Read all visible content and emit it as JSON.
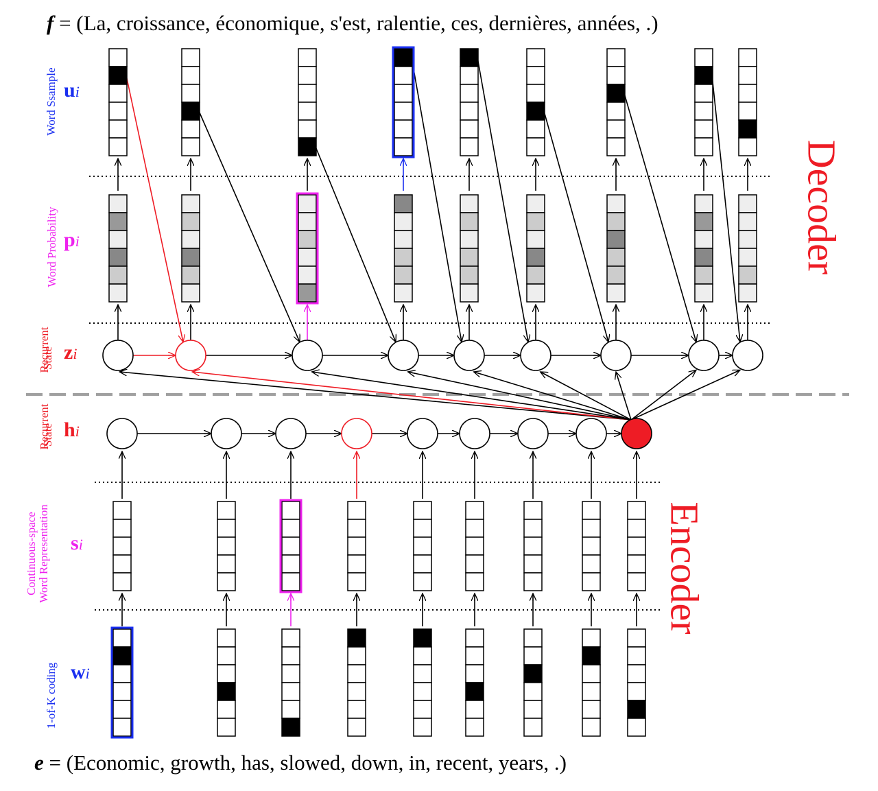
{
  "captions": {
    "f_label": "f",
    "f_text": " = (La, croissance, économique, s'est, ralentie, ces, dernières, années, .)",
    "e_label": "e",
    "e_text": " = (Economic, growth, has, slowed, down, in, recent, years, .)"
  },
  "side_labels": {
    "word_sample": "Word Ssample",
    "word_probability": "Word Probability",
    "dec_recurrent_1": "Recurrent",
    "dec_recurrent_2": "State",
    "enc_recurrent_1": "Recurrent",
    "enc_recurrent_2": "State",
    "continuous_1": "Continuous-space",
    "continuous_2": "Word Representation",
    "one_of_k": "1-of-K coding"
  },
  "symbols": {
    "u": "u",
    "p": "p",
    "z": "z",
    "h": "h",
    "s": "s",
    "w": "w",
    "sub": "i"
  },
  "sections": {
    "decoder": "Decoder",
    "encoder": "Encoder"
  },
  "colors": {
    "black": "#000000",
    "red": "#ee1c25",
    "blue": "#1a2ff0",
    "magenta": "#ee22ee",
    "dashed_divider": "#a0a0a0",
    "prob_light": "#eeeeee",
    "prob_mid": "#cccccc",
    "prob_dark": "#999999"
  },
  "decoder": {
    "word_sample_filled": [
      1,
      3,
      5,
      0,
      0,
      3,
      2,
      1,
      4
    ],
    "word_sample_highlight": [
      3
    ],
    "word_probability_shades": [
      [
        0,
        2,
        0,
        3,
        1,
        0
      ],
      [
        0,
        1,
        0,
        3,
        1,
        0
      ],
      [
        0,
        0,
        1,
        0,
        0,
        2
      ],
      [
        3,
        0,
        0,
        1,
        1,
        0
      ],
      [
        0,
        1,
        0,
        1,
        1,
        0
      ],
      [
        0,
        1,
        0,
        3,
        1,
        0
      ],
      [
        0,
        1,
        3,
        1,
        1,
        0
      ],
      [
        0,
        2,
        0,
        3,
        1,
        0
      ],
      [
        0,
        0,
        0,
        0,
        1,
        0
      ]
    ],
    "word_probability_highlight": [
      2
    ],
    "recurrent_state_highlight": [
      1
    ]
  },
  "encoder": {
    "recurrent_state_highlight": [
      3
    ],
    "recurrent_state_filled": [
      8
    ],
    "word_representation_highlight": [
      2
    ],
    "one_of_k_filled": [
      1,
      3,
      5,
      0,
      0,
      3,
      2,
      1,
      4
    ],
    "one_of_k_highlight": [
      0
    ]
  }
}
